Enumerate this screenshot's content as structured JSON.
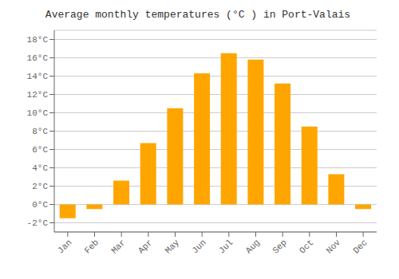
{
  "chart_data": {
    "type": "bar",
    "title": "Average monthly temperatures (°C ) in Port-Valais",
    "categories": [
      "Jan",
      "Feb",
      "Mar",
      "Apr",
      "May",
      "Jun",
      "Jul",
      "Aug",
      "Sep",
      "Oct",
      "Nov",
      "Dec"
    ],
    "values": [
      -1.5,
      -0.5,
      2.6,
      6.7,
      10.5,
      14.3,
      16.5,
      15.8,
      13.2,
      8.5,
      3.3,
      -0.5
    ],
    "color": "#FFA500",
    "ylim": [
      -3,
      19
    ],
    "yticks": [
      {
        "value": -2,
        "label": "-2°C"
      },
      {
        "value": 0,
        "label": "0°C"
      },
      {
        "value": 2,
        "label": "2°C"
      },
      {
        "value": 4,
        "label": "4°C"
      },
      {
        "value": 6,
        "label": "6°C"
      },
      {
        "value": 8,
        "label": "8°C"
      },
      {
        "value": 10,
        "label": "10°C"
      },
      {
        "value": 12,
        "label": "12°C"
      },
      {
        "value": 14,
        "label": "14°C"
      },
      {
        "value": 16,
        "label": "16°C"
      },
      {
        "value": 18,
        "label": "18°C"
      }
    ],
    "grid": true
  }
}
